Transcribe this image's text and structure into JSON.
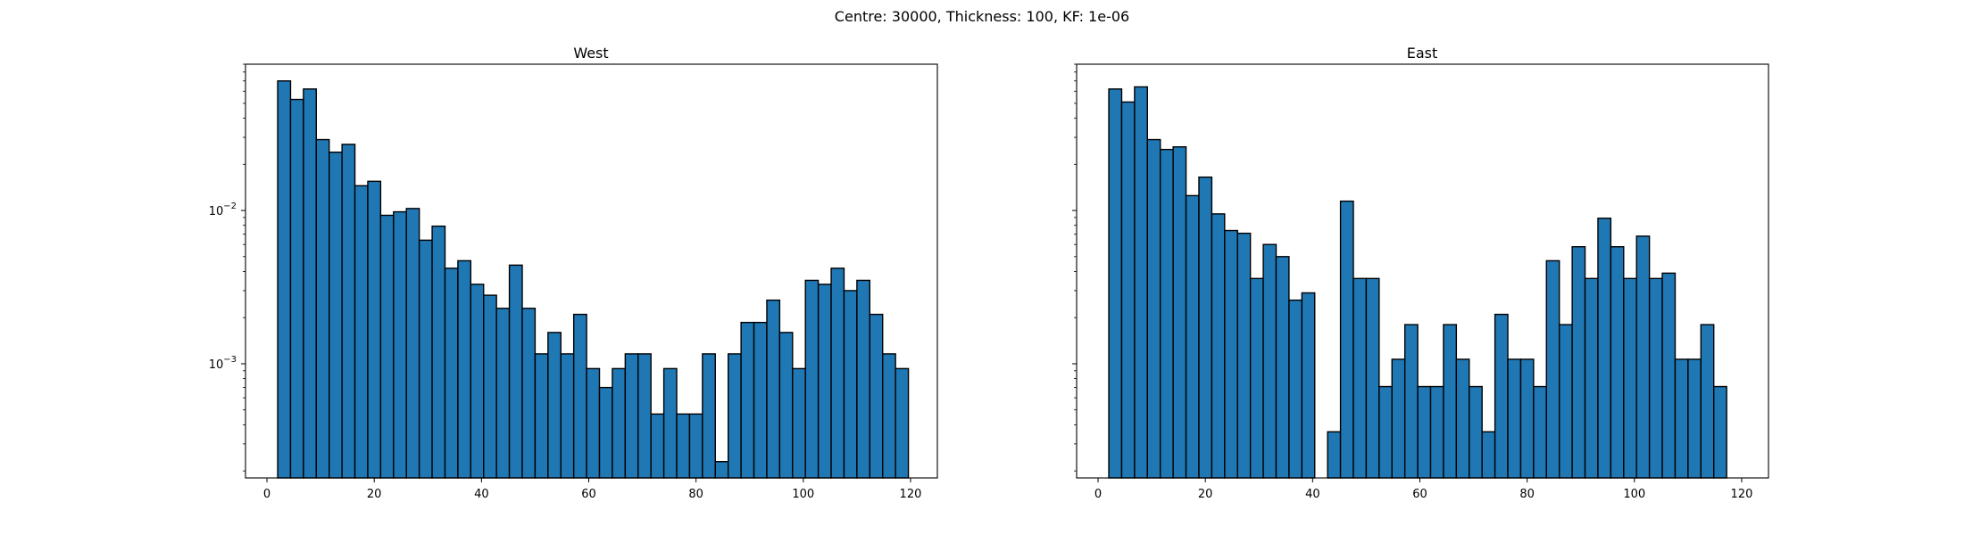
{
  "figure": {
    "suptitle": "Centre: 30000, Thickness: 100, KF: 1e-06"
  },
  "chart_data": [
    {
      "type": "bar",
      "title": "West",
      "xlabel": "",
      "ylabel": "",
      "yscale": "log",
      "bar_color": "#1f77b4",
      "edge_color": "#000000",
      "xlim": [
        -4,
        125
      ],
      "ylim": [
        0.00018,
        0.09
      ],
      "x_ticks": [
        0,
        20,
        40,
        60,
        80,
        100,
        120
      ],
      "y_ticks": [
        0.001,
        0.01
      ],
      "y_tick_labels": [
        "10^-3",
        "10^-2"
      ],
      "bin_edges": [
        2.0,
        4.4,
        6.8,
        9.2,
        11.6,
        14.0,
        16.4,
        18.8,
        21.2,
        23.6,
        26.0,
        28.4,
        30.8,
        33.2,
        35.6,
        38.0,
        40.4,
        42.8,
        45.2,
        47.6,
        50.0,
        52.4,
        54.8,
        57.2,
        59.6,
        62.0,
        64.4,
        66.8,
        69.2,
        71.6,
        74.0,
        76.4,
        78.8,
        81.2,
        83.6,
        86.0,
        88.4,
        90.8,
        93.2,
        95.6,
        98.0,
        100.4,
        102.8,
        105.2,
        107.6,
        110.0,
        112.4,
        114.8,
        117.2,
        119.6
      ],
      "values": [
        0.07,
        0.053,
        0.062,
        0.029,
        0.024,
        0.027,
        0.0145,
        0.0155,
        0.0093,
        0.0098,
        0.0103,
        0.0064,
        0.0079,
        0.0042,
        0.0047,
        0.0033,
        0.0028,
        0.0023,
        0.0044,
        0.0023,
        0.00116,
        0.0016,
        0.00116,
        0.0021,
        0.00093,
        0.0007,
        0.00093,
        0.00116,
        0.00116,
        0.00047,
        0.00093,
        0.00047,
        0.00047,
        0.00116,
        0.00023,
        0.00116,
        0.00186,
        0.00186,
        0.0026,
        0.0016,
        0.00093,
        0.0035,
        0.0033,
        0.0042,
        0.003,
        0.0035,
        0.0021,
        0.00116,
        0.00093
      ]
    },
    {
      "type": "bar",
      "title": "East",
      "xlabel": "",
      "ylabel": "",
      "yscale": "log",
      "bar_color": "#1f77b4",
      "edge_color": "#000000",
      "xlim": [
        -4,
        125
      ],
      "ylim": [
        0.00018,
        0.09
      ],
      "x_ticks": [
        0,
        20,
        40,
        60,
        80,
        100,
        120
      ],
      "y_ticks": [
        0.001,
        0.01
      ],
      "bin_edges": [
        2.0,
        4.4,
        6.8,
        9.2,
        11.6,
        14.0,
        16.4,
        18.8,
        21.2,
        23.6,
        26.0,
        28.4,
        30.8,
        33.2,
        35.6,
        38.0,
        40.4,
        42.8,
        45.2,
        47.6,
        50.0,
        52.4,
        54.8,
        57.2,
        59.6,
        62.0,
        64.4,
        66.8,
        69.2,
        71.6,
        74.0,
        76.4,
        78.8,
        81.2,
        83.6,
        86.0,
        88.4,
        90.8,
        93.2,
        95.6,
        98.0,
        100.4,
        102.8,
        105.2,
        107.6,
        110.0,
        112.4,
        114.8,
        117.2
      ],
      "values": [
        0.062,
        0.051,
        0.064,
        0.029,
        0.025,
        0.026,
        0.0125,
        0.0165,
        0.0095,
        0.0074,
        0.0071,
        0.0036,
        0.006,
        0.005,
        0.0026,
        0.0029,
        0,
        0.00036,
        0.0115,
        0.0036,
        0.0036,
        0.00071,
        0.00107,
        0.0018,
        0.00071,
        0.00071,
        0.0018,
        0.00107,
        0.00071,
        0.00036,
        0.0021,
        0.00107,
        0.00107,
        0.00071,
        0.0047,
        0.0018,
        0.0058,
        0.0036,
        0.0089,
        0.0058,
        0.0036,
        0.0068,
        0.0036,
        0.0039,
        0.00107,
        0.00107,
        0.0018,
        0.00071
      ]
    }
  ]
}
